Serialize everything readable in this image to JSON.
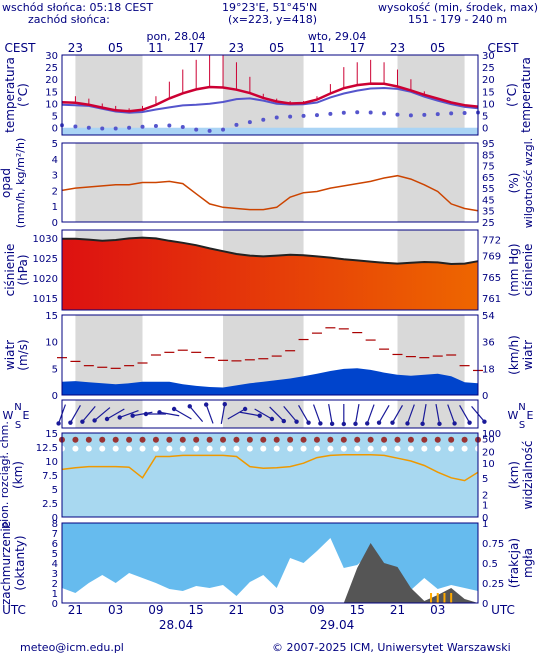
{
  "header": {
    "sunrise": "wschód słońca: 05:18 CEST",
    "sunset": "zachód słońca:",
    "coords": "19°23'E, 51°45'N",
    "grid": "(x=223, y=418)",
    "elev_title": "wysokość (min, środek, max)",
    "elev_values": "151 - 179 - 240 m"
  },
  "timeline": {
    "top_zone": "CEST",
    "top_zone_right": "CEST",
    "top_hours": [
      "23",
      "05",
      "11",
      "17",
      "23",
      "05",
      "11",
      "17",
      "23",
      "05"
    ],
    "top_dates": [
      "pon, 28.04",
      "wto, 29.04"
    ],
    "bottom_zone": "UTC",
    "bottom_zone_right": "UTC",
    "bottom_hours": [
      "21",
      "03",
      "09",
      "15",
      "21",
      "03",
      "09",
      "15",
      "21",
      "03"
    ],
    "bottom_dates": [
      "28.04",
      "29.04"
    ]
  },
  "colors": {
    "frame": "#000080",
    "night": "#d9d9d9",
    "temp_max": "#cc0033",
    "temp_mean": "#cc0033",
    "temp_dew": "#5555cc",
    "humidity": "#cc4400",
    "pressure_high": "#dd1111",
    "pressure_low": "#ee6600",
    "wind_area": "#0044cc",
    "wind_gust": "#aa0000",
    "cloud_area": "#66bbee",
    "fog": "#555555",
    "visibility": "#ee9900"
  },
  "chart_data": [
    {
      "type": "line",
      "name": "temperatura",
      "ylabel_left": "temperatura (°C)",
      "ylim": [
        -3,
        30
      ],
      "ticks": [
        0,
        5,
        10,
        15,
        20,
        25,
        30
      ],
      "x": [
        0,
        2,
        4,
        6,
        8,
        10,
        12,
        14,
        16,
        18,
        20,
        22,
        24,
        26,
        28,
        30,
        32,
        34,
        36,
        38,
        40,
        42,
        44,
        46,
        48,
        50,
        52,
        54,
        56,
        58,
        60,
        62
      ],
      "series": [
        {
          "name": "temp",
          "values": [
            10.5,
            10.3,
            9.5,
            8.3,
            7.2,
            6.8,
            7.4,
            9.4,
            12.1,
            14.2,
            15.8,
            16.8,
            16.6,
            15.7,
            14.3,
            12.3,
            10.8,
            10.0,
            10.2,
            11.6,
            14.1,
            16.3,
            17.6,
            18.2,
            18.1,
            17.0,
            15.4,
            13.6,
            12.0,
            10.4,
            9.3,
            8.7
          ]
        },
        {
          "name": "dew",
          "values": [
            9.5,
            9.3,
            9.0,
            7.8,
            6.7,
            6.2,
            6.5,
            7.5,
            8.4,
            9.2,
            9.5,
            9.9,
            10.6,
            11.8,
            12.1,
            11.2,
            9.9,
            9.6,
            9.7,
            10.4,
            12.5,
            14.1,
            15.3,
            16.2,
            16.4,
            16.0,
            14.8,
            12.8,
            11.2,
            9.7,
            8.6,
            8.0
          ]
        },
        {
          "name": "min_dots",
          "values": [
            1.0,
            0.5,
            0.0,
            -0.3,
            -0.3,
            0.0,
            0.4,
            0.7,
            0.9,
            0.3,
            -0.8,
            -1.3,
            -0.8,
            1.2,
            2.3,
            3.3,
            4.2,
            4.6,
            4.9,
            5.2,
            5.7,
            6.2,
            6.4,
            6.3,
            5.9,
            5.4,
            5.1,
            5.3,
            5.6,
            5.9,
            6.1,
            6.3
          ]
        }
      ],
      "max_bars": [
        14,
        13,
        12,
        10,
        9,
        8,
        9,
        13,
        19,
        24,
        28,
        30,
        30,
        27,
        21,
        14,
        12,
        11,
        11,
        13,
        18,
        25,
        27,
        28,
        27,
        24,
        20,
        15,
        12,
        10,
        9,
        8
      ]
    },
    {
      "type": "line",
      "name": "opad / wilgotność",
      "ylabel_left": "opad (mm/h, kg/m²/h)",
      "ylabel_right": "(%) wilgotność wzgl.",
      "ylim": [
        0,
        5
      ],
      "ylim_right": [
        25,
        95
      ],
      "ticks_left": [
        0,
        1,
        2,
        3,
        4,
        5
      ],
      "ticks_right": [
        25,
        35,
        45,
        55,
        65,
        75,
        85,
        95
      ],
      "x": [
        0,
        2,
        4,
        6,
        8,
        10,
        12,
        14,
        16,
        18,
        20,
        22,
        24,
        26,
        28,
        30,
        32,
        34,
        36,
        38,
        40,
        42,
        44,
        46,
        48,
        50,
        52,
        54,
        56,
        58,
        60,
        62
      ],
      "humidity": [
        53,
        55,
        56,
        57,
        58,
        58,
        60,
        60,
        61,
        59,
        50,
        41,
        38,
        37,
        36,
        36,
        38,
        47,
        51,
        52,
        55,
        57,
        59,
        61,
        64,
        66,
        63,
        58,
        52,
        41,
        37,
        35
      ],
      "precip": [
        0,
        0,
        0,
        0,
        0,
        0,
        0,
        0,
        0,
        0,
        0,
        0,
        0,
        0,
        0,
        0,
        0,
        0,
        0,
        0,
        0,
        0,
        0,
        0,
        0,
        0,
        0,
        0,
        0,
        0,
        0,
        0
      ]
    },
    {
      "type": "area",
      "name": "ciśnienie",
      "ylabel_left": "ciśnienie (hPa)",
      "ylabel_right": "(mm Hg) ciśnienie",
      "ylim": [
        1012,
        1032
      ],
      "ticks_left": [
        1015,
        1020,
        1025,
        1030
      ],
      "ticks_right": [
        761,
        765,
        769,
        772
      ],
      "values": [
        1029.8,
        1029.8,
        1029.6,
        1029.3,
        1029.5,
        1029.9,
        1030.1,
        1029.9,
        1029.3,
        1028.8,
        1028.2,
        1027.4,
        1026.7,
        1026.0,
        1025.6,
        1025.4,
        1025.6,
        1025.8,
        1025.7,
        1025.4,
        1025.1,
        1024.7,
        1024.4,
        1024.1,
        1023.8,
        1023.6,
        1023.8,
        1024.0,
        1023.9,
        1023.5,
        1023.6,
        1024.2
      ]
    },
    {
      "type": "area",
      "name": "wiatr",
      "ylabel_left": "wiatr (m/s)",
      "ylabel_right": "(km/h) wiatr",
      "ylim": [
        0,
        15
      ],
      "ticks_left": [
        0,
        5,
        10,
        15
      ],
      "ticks_right": [
        0,
        18,
        36,
        54
      ],
      "wind": [
        2.5,
        2.6,
        2.4,
        2.2,
        2.0,
        2.2,
        2.5,
        2.5,
        2.5,
        2.0,
        1.7,
        1.5,
        1.4,
        1.8,
        2.2,
        2.5,
        2.8,
        3.1,
        3.5,
        4.0,
        4.5,
        4.9,
        5.0,
        4.7,
        4.2,
        3.8,
        3.6,
        3.8,
        4.0,
        3.5,
        2.4,
        2.2
      ],
      "gust": [
        7.0,
        6.3,
        5.5,
        5.2,
        5.0,
        5.5,
        6.0,
        7.5,
        8.0,
        8.4,
        8.0,
        7.0,
        6.5,
        6.4,
        6.6,
        6.8,
        7.3,
        8.3,
        10.4,
        11.6,
        12.6,
        12.4,
        11.7,
        10.3,
        8.6,
        7.6,
        7.2,
        7.0,
        7.3,
        7.5,
        5.5,
        4.6
      ]
    },
    {
      "type": "scatter",
      "name": "kierunek wiatru",
      "labels": [
        "W",
        "N",
        "S",
        "E"
      ],
      "direction_deg": [
        200,
        210,
        220,
        230,
        240,
        250,
        260,
        270,
        280,
        300,
        320,
        340,
        10,
        60,
        100,
        120,
        135,
        140,
        150,
        160,
        170,
        180,
        190,
        200,
        210,
        210,
        200,
        190,
        170,
        160,
        150,
        140
      ]
    },
    {
      "type": "line",
      "name": "widzialność",
      "ylabel_left": "pion. rozciągł. chm. (km)",
      "ylabel_right": "(km) widzialność",
      "ylim": [
        0,
        15
      ],
      "ylim_right": [
        0,
        100
      ],
      "ticks_left": [
        0,
        2.5,
        5,
        7.5,
        10,
        12.5,
        15
      ],
      "ticks_right": [
        0,
        1,
        2,
        5,
        10,
        20,
        50,
        100
      ],
      "visibility": [
        8.5,
        8.8,
        9.0,
        9.0,
        9.0,
        8.9,
        7.0,
        10.8,
        10.8,
        11.0,
        11.0,
        11.0,
        11.0,
        10.8,
        9.0,
        8.7,
        8.8,
        9.0,
        9.6,
        10.6,
        11.0,
        11.1,
        11.1,
        11.1,
        11.0,
        10.5,
        10.0,
        9.2,
        8.0,
        7.0,
        6.5,
        8.0
      ]
    },
    {
      "type": "area",
      "name": "zachmurzenie",
      "ylabel_left": "zachmurzenie (oktanty)",
      "ylabel_right": "(frakcja) mgła",
      "ylim": [
        0,
        8
      ],
      "ylim_right": [
        0,
        1
      ],
      "ticks_left": [
        0,
        1,
        2,
        3,
        4,
        5,
        6,
        7,
        8
      ],
      "ticks_right": [
        0,
        0.25,
        0.5,
        0.75,
        1
      ],
      "cloud": [
        1.5,
        1.0,
        2.0,
        2.8,
        2.0,
        3.0,
        2.5,
        2.0,
        1.4,
        1.2,
        1.7,
        1.5,
        1.8,
        0.7,
        2.1,
        2.8,
        1.5,
        4.5,
        4.0,
        5.2,
        6.5,
        3.5,
        3.8,
        5.0,
        3.6,
        2.4,
        1.3,
        2.5,
        1.4,
        1.8,
        1.5,
        1.2
      ],
      "fog": [
        0,
        0,
        0,
        0,
        0,
        0,
        0,
        0,
        0,
        0,
        0,
        0,
        0,
        0,
        0,
        0,
        0,
        0,
        0,
        0,
        0,
        0,
        3.5,
        6.0,
        4.0,
        3.6,
        1.5,
        0.2,
        0.8,
        1.5,
        0.4,
        0
      ]
    }
  ],
  "footer": {
    "email": "meteo@icm.edu.pl",
    "copyright": "© 2007-2025 ICM, Uniwersytet Warszawski"
  }
}
